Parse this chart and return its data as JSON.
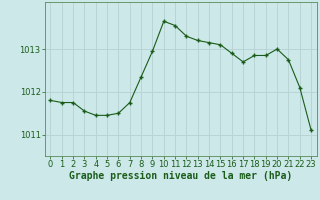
{
  "x": [
    0,
    1,
    2,
    3,
    4,
    5,
    6,
    7,
    8,
    9,
    10,
    11,
    12,
    13,
    14,
    15,
    16,
    17,
    18,
    19,
    20,
    21,
    22,
    23
  ],
  "y": [
    1011.8,
    1011.75,
    1011.75,
    1011.55,
    1011.45,
    1011.45,
    1011.5,
    1011.75,
    1012.35,
    1012.95,
    1013.65,
    1013.55,
    1013.3,
    1013.2,
    1013.15,
    1013.1,
    1012.9,
    1012.7,
    1012.85,
    1012.85,
    1013.0,
    1012.75,
    1012.1,
    1011.1
  ],
  "line_color": "#1a5c1a",
  "marker_color": "#1a5c1a",
  "bg_color": "#cce8e8",
  "grid_color": "#b8d4d4",
  "xlabel": "Graphe pression niveau de la mer (hPa)",
  "yticks": [
    1011,
    1012,
    1013
  ],
  "xticks": [
    0,
    1,
    2,
    3,
    4,
    5,
    6,
    7,
    8,
    9,
    10,
    11,
    12,
    13,
    14,
    15,
    16,
    17,
    18,
    19,
    20,
    21,
    22,
    23
  ],
  "xlim": [
    -0.5,
    23.5
  ],
  "ylim": [
    1010.5,
    1014.1
  ],
  "xlabel_fontsize": 7.0,
  "tick_fontsize": 6.0,
  "xlabel_color": "#1a5c1a",
  "tick_color": "#1a5c1a",
  "axis_color": "#5a8a5a"
}
